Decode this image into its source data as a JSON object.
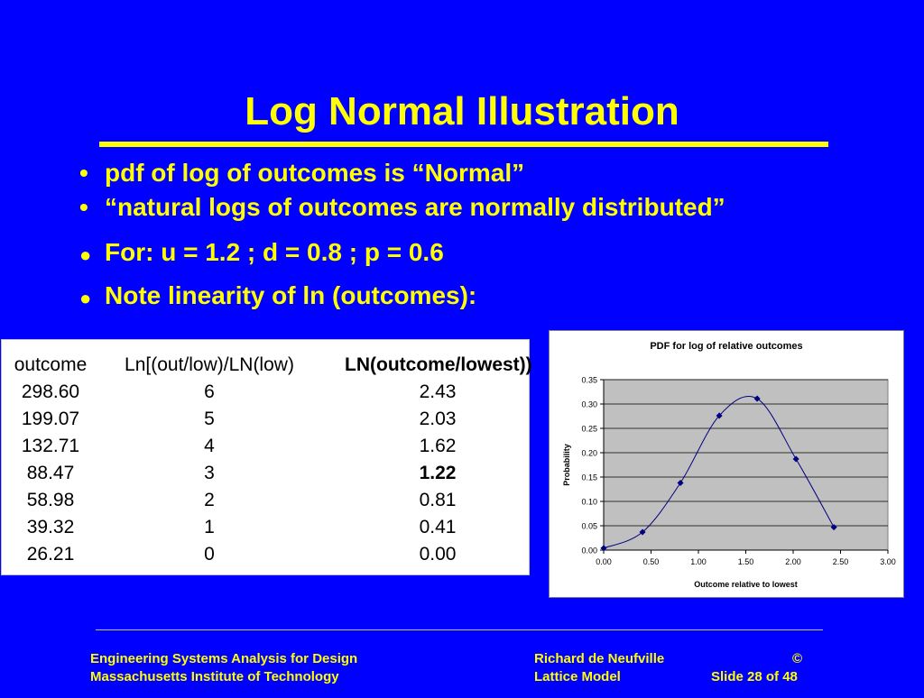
{
  "slide": {
    "title": "Log Normal Illustration",
    "bullets": [
      {
        "mark": "•",
        "text": "pdf of log of outcomes is “Normal”"
      },
      {
        "mark": "•",
        "text": "“natural logs of outcomes are normally distributed”"
      },
      {
        "mark": "●",
        "text": "For:  u = 1.2 ; d = 0.8 ; p = 0.6"
      },
      {
        "mark": "●",
        "text": "Note linearity of ln (outcomes):"
      }
    ]
  },
  "table": {
    "headers": [
      "outcome",
      "Ln[(out/low)/LN(low)",
      "LN(outcome/lowest))"
    ],
    "rows": [
      [
        "298.60",
        "6",
        "2.43"
      ],
      [
        "199.07",
        "5",
        "2.03"
      ],
      [
        "132.71",
        "4",
        "1.62"
      ],
      [
        "88.47",
        "3",
        "1.22"
      ],
      [
        "58.98",
        "2",
        "0.81"
      ],
      [
        "39.32",
        "1",
        "0.41"
      ],
      [
        "26.21",
        "0",
        "0.00"
      ]
    ]
  },
  "chart_data": {
    "type": "line",
    "title": "PDF for log of relative outcomes",
    "xlabel": "Outcome relative to lowest",
    "ylabel": "Probability",
    "xlim": [
      0,
      3
    ],
    "ylim": [
      0,
      0.35
    ],
    "xticks": [
      "0.00",
      "0.50",
      "1.00",
      "1.50",
      "2.00",
      "2.50",
      "3.00"
    ],
    "yticks": [
      "0.00",
      "0.05",
      "0.10",
      "0.15",
      "0.20",
      "0.25",
      "0.30",
      "0.35"
    ],
    "grid": true,
    "series": [
      {
        "x": [
          0.0,
          0.41,
          0.81,
          1.22,
          1.62,
          2.03,
          2.43
        ],
        "y": [
          0.004,
          0.037,
          0.138,
          0.276,
          0.311,
          0.187,
          0.047
        ]
      }
    ],
    "colors": {
      "plot_bg": "#c0c0c0",
      "line": "#000080"
    }
  },
  "footer": {
    "left1": "Engineering Systems Analysis for Design",
    "left2": "Massachusetts Institute of Technology",
    "mid1": "Richard de Neufville",
    "mid2": "Lattice Model",
    "right1": "©",
    "right2": "Slide 28 of 48"
  },
  "colors": {
    "background": "#0000ff",
    "accent": "#ffff00"
  }
}
